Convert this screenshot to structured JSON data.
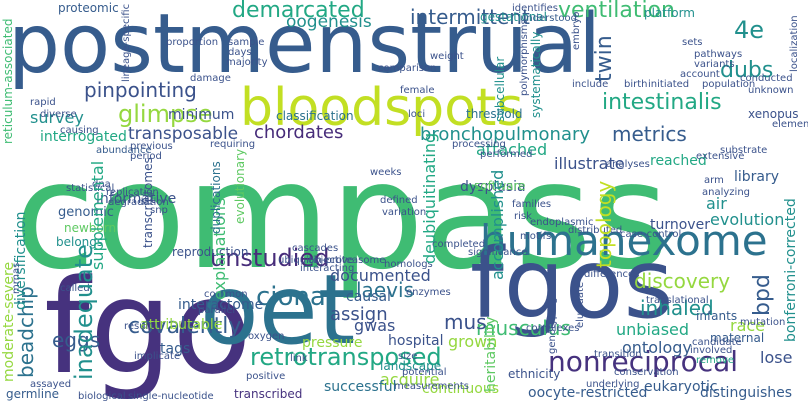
{
  "palette": {
    "dark_purple": "#46327e",
    "deep_purple": "#472c7a",
    "indigo": "#3b528b",
    "slate_blue": "#365c8d",
    "steel_blue": "#2c728e",
    "teal": "#21908d",
    "sea_green": "#22a884",
    "green": "#3fbc73",
    "light_green": "#5ec962",
    "lime": "#95d840",
    "yellow_green": "#c2df23",
    "yellow": "#dde318"
  },
  "words": {
    "postmenstrual": "postmenstrual",
    "compass": "compass",
    "fgo": "fgo",
    "oet": "oet",
    "fgos": "fgos",
    "bloodspots": "bloodspots",
    "humanexome": "humanexome",
    "retrotransposed": "retrotransposed",
    "nonreciprocal": "nonreciprocal",
    "demarcated": "demarcated",
    "ventilation": "ventilation",
    "intermittent": "intermittent",
    "oogenesis": "oogenesis",
    "proteomic": "proteomic",
    "gestational": "gestational",
    "platform": "platform",
    "w4e": "4e",
    "twin": "twin",
    "dubs": "dubs",
    "intestinalis": "intestinalis",
    "glimpse": "glimpse",
    "pinpointing": "pinpointing",
    "survey": "survey",
    "transposable": "transposable",
    "chordates": "chordates",
    "metrics": "metrics",
    "bronchopulmonary": "bronchopulmonary",
    "interrogated": "interrogated",
    "unstudied": "unstudied",
    "ciona": "ciona",
    "laevis": "laevis",
    "discovery": "discovery",
    "inhaled": "inhaled",
    "musculus": "musculus",
    "covalently": "covalently",
    "interactome": "interactome",
    "beadchip": "beadchip",
    "eggs": "eggs",
    "inadequate": "inadequate",
    "diversification": "diversification",
    "informative": "informative",
    "genomic": "genomic",
    "belongs": "belongs",
    "newborn": "newborn",
    "supplemental": "supplemental",
    "reproduction": "reproduction",
    "topology": "topology",
    "air": "air",
    "evolution": "evolution",
    "turnover": "turnover",
    "dysplasia": "dysplasia",
    "accomplished": "accomplished",
    "deubiquitinating": "deubiquitinating",
    "explanations": "explanations",
    "assign": "assign",
    "documented": "documented",
    "causal": "causal",
    "gwas": "gwas",
    "hospital": "hospital",
    "mus": "mus",
    "grown": "grown",
    "pressure": "pressure",
    "race": "race",
    "bpd": "bpd",
    "unbiased": "unbiased",
    "ontology": "ontology",
    "maternal": "maternal",
    "lose": "lose",
    "infants": "infants",
    "acquire": "acquire",
    "landscape": "landscape",
    "successful": "successful",
    "continuous": "continuous",
    "eukaryotic": "eukaryotic",
    "oocyte_restricted": "oocyte-restricted",
    "distinguishes": "distinguishes",
    "ethnicity": "ethnicity",
    "heritability": "heritability",
    "transcribed": "transcribed",
    "attributable": "attributable",
    "tags": "tags",
    "germline": "germline",
    "moderate_severe": "moderate-severe",
    "reticulum_associated": "reticulum-associated",
    "bonferroni_corrected": "bonferroni-corrected",
    "minimum": "minimum",
    "classification": "classification",
    "attached": "attached",
    "reached": "reached",
    "illustrate": "illustrate",
    "software": "software",
    "library": "library",
    "xenopus": "xenopus",
    "threshold": "threshold",
    "subcellular": "subcellular",
    "systematically": "systematically",
    "transcriptomes": "transcriptomes",
    "duplications": "duplications",
    "evolutionary": "evolutionary",
    "identifies": "identifies",
    "understood": "understood",
    "lineage_specific": "lineage-specific",
    "proportion": "proportion",
    "sample": "sample",
    "days": "days",
    "majority": "majority",
    "embryo": "embryo",
    "comparison": "comparison",
    "weight": "weight",
    "polymorphisms": "polymorphisms",
    "birth": "birth",
    "initiated": "initiated",
    "include": "include",
    "account": "account",
    "population": "population",
    "sets": "sets",
    "pathways": "pathways",
    "variants": "variants",
    "localization": "localization",
    "conducted": "conducted",
    "unknown": "unknown",
    "elements": "elements",
    "rapid": "rapid",
    "damage": "damage",
    "diverse": "diverse",
    "causing": "causing",
    "abundance": "abundance",
    "previous": "previous",
    "period": "period",
    "requiring": "requiring",
    "female": "female",
    "loci": "loci",
    "performed": "performed",
    "processing": "processing",
    "analyses": "analyses",
    "substrate": "substrate",
    "extensive": "extensive",
    "analyzing": "analyzing",
    "statistical": "statistical",
    "dna": "dna",
    "replication": "replication",
    "degradation": "degradation",
    "snp": "snp",
    "weeks": "weeks",
    "defined": "defined",
    "variation": "variation",
    "completed": "completed",
    "significance": "significance",
    "families": "families",
    "risk": "risk",
    "motifs": "motifs",
    "endoplasmic": "endoplasmic",
    "distributed": "distributed",
    "case_control": "case-control",
    "differences": "differences",
    "translational": "translational",
    "arm": "arm",
    "called": "called",
    "cascades": "cascades",
    "objective": "objective",
    "ubiquitin_proteasome": "ubiquitin-proteasome",
    "interacting": "interacting",
    "homologs": "homologs",
    "enzymes": "enzymes",
    "common": "common",
    "parallel": "parallel",
    "implicate": "implicate",
    "mrnas": "mrnas",
    "result": "result",
    "oxygen": "oxygen",
    "positive": "positive",
    "link": "link",
    "measurements": "measurements",
    "potential": "potential",
    "size": "size",
    "biological": "biological",
    "single_nucleotide": "single-nucleotide",
    "assayed": "assayed",
    "underlying": "underlying",
    "conservation": "conservation",
    "genotyping": "genotyping",
    "elucidate": "elucidate",
    "complexes": "complexes",
    "transition": "transition",
    "involved": "involved",
    "mutation": "mutation",
    "remove": "remove",
    "candidate": "candidate"
  }
}
